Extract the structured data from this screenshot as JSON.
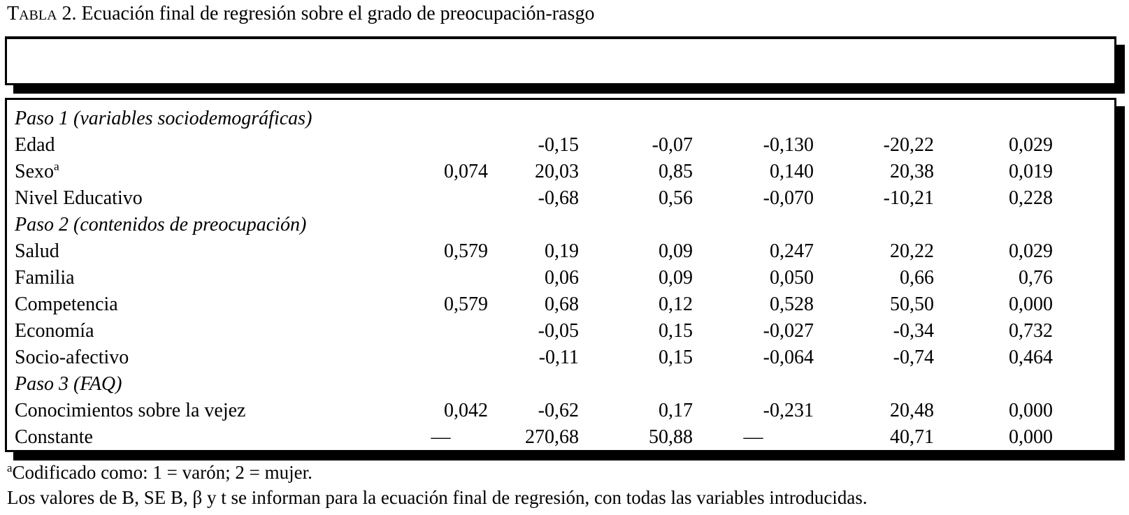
{
  "title": {
    "label": "Tabla",
    "rest": " 2. Ecuación final de regresión sobre el grado de preocupación-rasgo"
  },
  "table": {
    "rows": [
      {
        "kind": "section",
        "label": "Paso 1 (variables sociodemográficas)",
        "sup": "",
        "values": [
          "",
          "",
          "",
          "",
          "",
          ""
        ]
      },
      {
        "kind": "data",
        "label": "Edad",
        "sup": "",
        "values": [
          "",
          "-0,15",
          "-0,07",
          "-0,130",
          "-20,22",
          "0,029"
        ]
      },
      {
        "kind": "data",
        "label": "Sexo",
        "sup": "a",
        "values": [
          "0,074",
          "20,03",
          "0,85",
          "0,140",
          "20,38",
          "0,019"
        ]
      },
      {
        "kind": "data",
        "label": "Nivel Educativo",
        "sup": "",
        "values": [
          "",
          "-0,68",
          "0,56",
          "-0,070",
          "-10,21",
          "0,228"
        ]
      },
      {
        "kind": "section",
        "label": "Paso 2 (contenidos de preocupación)",
        "sup": "",
        "values": [
          "",
          "",
          "",
          "",
          "",
          ""
        ]
      },
      {
        "kind": "data",
        "label": "Salud",
        "sup": "",
        "values": [
          "0,579",
          "0,19",
          "0,09",
          "0,247",
          "20,22",
          "0,029"
        ]
      },
      {
        "kind": "data",
        "label": "Familia",
        "sup": "",
        "values": [
          "",
          "0,06",
          "0,09",
          "0,050",
          "0,66",
          "0,76"
        ]
      },
      {
        "kind": "data",
        "label": "Competencia",
        "sup": "",
        "values": [
          "0,579",
          "0,68",
          "0,12",
          "0,528",
          "50,50",
          "0,000"
        ]
      },
      {
        "kind": "data",
        "label": "Economía",
        "sup": "",
        "values": [
          "",
          "-0,05",
          "0,15",
          "-0,027",
          "-0,34",
          "0,732"
        ]
      },
      {
        "kind": "data",
        "label": "Socio-afectivo",
        "sup": "",
        "values": [
          "",
          "-0,11",
          "0,15",
          "-0,064",
          "-0,74",
          "0,464"
        ]
      },
      {
        "kind": "section",
        "label": "Paso 3 (FAQ)",
        "sup": "",
        "values": [
          "",
          "",
          "",
          "",
          "",
          ""
        ]
      },
      {
        "kind": "data",
        "label": "Conocimientos sobre la vejez",
        "sup": "",
        "values": [
          "0,042",
          "-0,62",
          "0,17",
          "-0,231",
          "20,48",
          "0,000"
        ]
      },
      {
        "kind": "data",
        "label": "Constante",
        "sup": "",
        "values": [
          "—",
          "270,68",
          "50,88",
          "—",
          "40,71",
          "0,000"
        ]
      }
    ]
  },
  "footnotes": {
    "note1_sup": "a",
    "note1": "Codificado como: 1 = varón; 2 = mujer.",
    "note2": "Los valores de B, SE B, β y t se informan para la ecuación final de regresión, con todas las variables introducidas."
  }
}
